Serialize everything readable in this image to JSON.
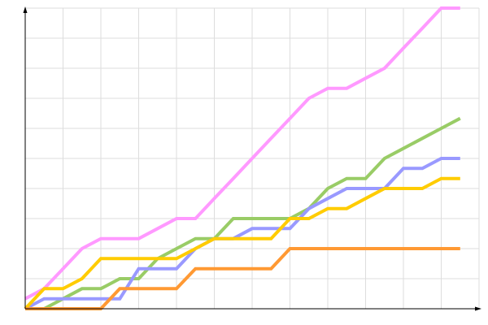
{
  "chart_data": {
    "type": "line",
    "title": "",
    "xlabel": "",
    "ylabel": "",
    "x": [
      0,
      1,
      2,
      3,
      4,
      5,
      6,
      7,
      8,
      9,
      10,
      11,
      12,
      13,
      14,
      15,
      16,
      17,
      18,
      19,
      20,
      21,
      22,
      23
    ],
    "xlim": [
      0,
      24
    ],
    "ylim": [
      0,
      30
    ],
    "x_grid_step": 2,
    "y_grid_step": 3,
    "grid": true,
    "legend": "none",
    "tick_labels": false,
    "series": [
      {
        "color": "#ff99ff",
        "values": [
          1,
          2,
          4,
          6,
          7,
          7,
          7,
          8,
          9,
          9,
          11,
          13,
          15,
          17,
          19,
          21,
          22,
          22,
          23,
          24,
          26,
          28,
          30,
          30
        ]
      },
      {
        "color": "#99cc66",
        "values": [
          0,
          0,
          1,
          2,
          2,
          3,
          3,
          5,
          6,
          7,
          7,
          9,
          9,
          9,
          9,
          10,
          12,
          13,
          13,
          15,
          16,
          17,
          18,
          19
        ]
      },
      {
        "color": "#9999ff",
        "values": [
          0,
          1,
          1,
          1,
          1,
          1,
          4,
          4,
          4,
          6,
          7,
          7,
          8,
          8,
          8,
          10,
          11,
          12,
          12,
          12,
          14,
          14,
          15,
          15
        ]
      },
      {
        "color": "#ffcc00",
        "values": [
          0,
          2,
          2,
          3,
          5,
          5,
          5,
          5,
          5,
          6,
          7,
          7,
          7,
          7,
          9,
          9,
          10,
          10,
          11,
          12,
          12,
          12,
          13,
          13
        ]
      },
      {
        "color": "#ff9933",
        "values": [
          0,
          0,
          0,
          0,
          0,
          2,
          2,
          2,
          2,
          4,
          4,
          4,
          4,
          4,
          6,
          6,
          6,
          6,
          6,
          6,
          6,
          6,
          6,
          6
        ]
      }
    ]
  }
}
